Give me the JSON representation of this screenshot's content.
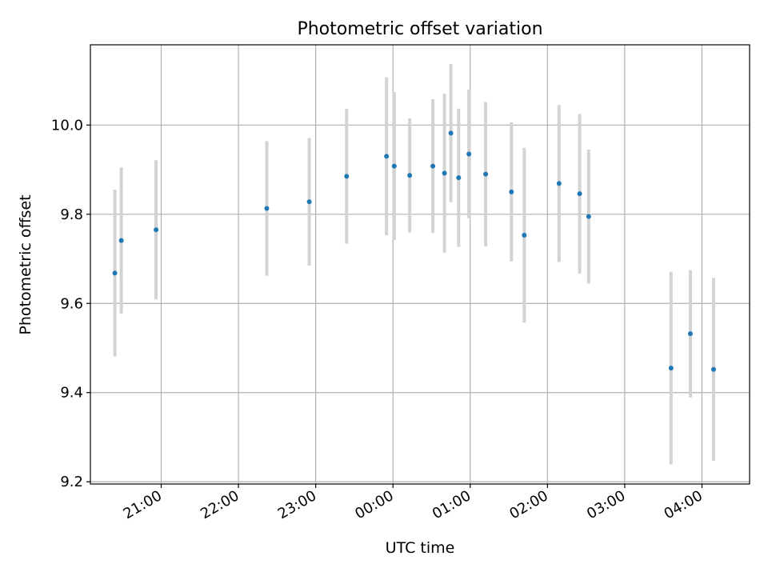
{
  "chart_data": {
    "type": "scatter",
    "title": "Photometric offset variation",
    "xlabel": "UTC time",
    "ylabel": "Photometric offset",
    "x_unit": "UTC time (hours, ticks hourly; night crosses midnight)",
    "x_ticks": [
      "21:00",
      "22:00",
      "23:00",
      "00:00",
      "01:00",
      "02:00",
      "03:00",
      "04:00"
    ],
    "y_ticks": [
      "9.2",
      "9.4",
      "9.6",
      "9.8",
      "10.0"
    ],
    "xlim": [
      "20:05",
      "04:37"
    ],
    "ylim": [
      9.195,
      10.18
    ],
    "grid": true,
    "colors": {
      "point": "#1f77b4",
      "errorbar": "#d3d3d3",
      "grid": "#b0b0b0"
    },
    "series": [
      {
        "points": [
          {
            "t": "20:24",
            "y": 9.668,
            "err": 0.187
          },
          {
            "t": "20:29",
            "y": 9.741,
            "err": 0.164
          },
          {
            "t": "20:56",
            "y": 9.765,
            "err": 0.156
          },
          {
            "t": "22:22",
            "y": 9.813,
            "err": 0.151
          },
          {
            "t": "22:55",
            "y": 9.828,
            "err": 0.143
          },
          {
            "t": "23:24",
            "y": 9.885,
            "err": 0.151
          },
          {
            "t": "23:55",
            "y": 9.93,
            "err": 0.177
          },
          {
            "t": "00:01",
            "y": 9.908,
            "err": 0.166
          },
          {
            "t": "00:13",
            "y": 9.887,
            "err": 0.128
          },
          {
            "t": "00:31",
            "y": 9.908,
            "err": 0.15
          },
          {
            "t": "00:40",
            "y": 9.892,
            "err": 0.178
          },
          {
            "t": "00:45",
            "y": 9.982,
            "err": 0.155
          },
          {
            "t": "00:51",
            "y": 9.882,
            "err": 0.155
          },
          {
            "t": "00:59",
            "y": 9.935,
            "err": 0.144
          },
          {
            "t": "01:12",
            "y": 9.89,
            "err": 0.162
          },
          {
            "t": "01:32",
            "y": 9.85,
            "err": 0.156
          },
          {
            "t": "01:42",
            "y": 9.753,
            "err": 0.196
          },
          {
            "t": "02:09",
            "y": 9.869,
            "err": 0.176
          },
          {
            "t": "02:25",
            "y": 9.846,
            "err": 0.179
          },
          {
            "t": "02:32",
            "y": 9.795,
            "err": 0.15
          },
          {
            "t": "03:36",
            "y": 9.455,
            "err": 0.216
          },
          {
            "t": "03:51",
            "y": 9.532,
            "err": 0.143
          },
          {
            "t": "04:09",
            "y": 9.452,
            "err": 0.205
          }
        ]
      }
    ]
  }
}
